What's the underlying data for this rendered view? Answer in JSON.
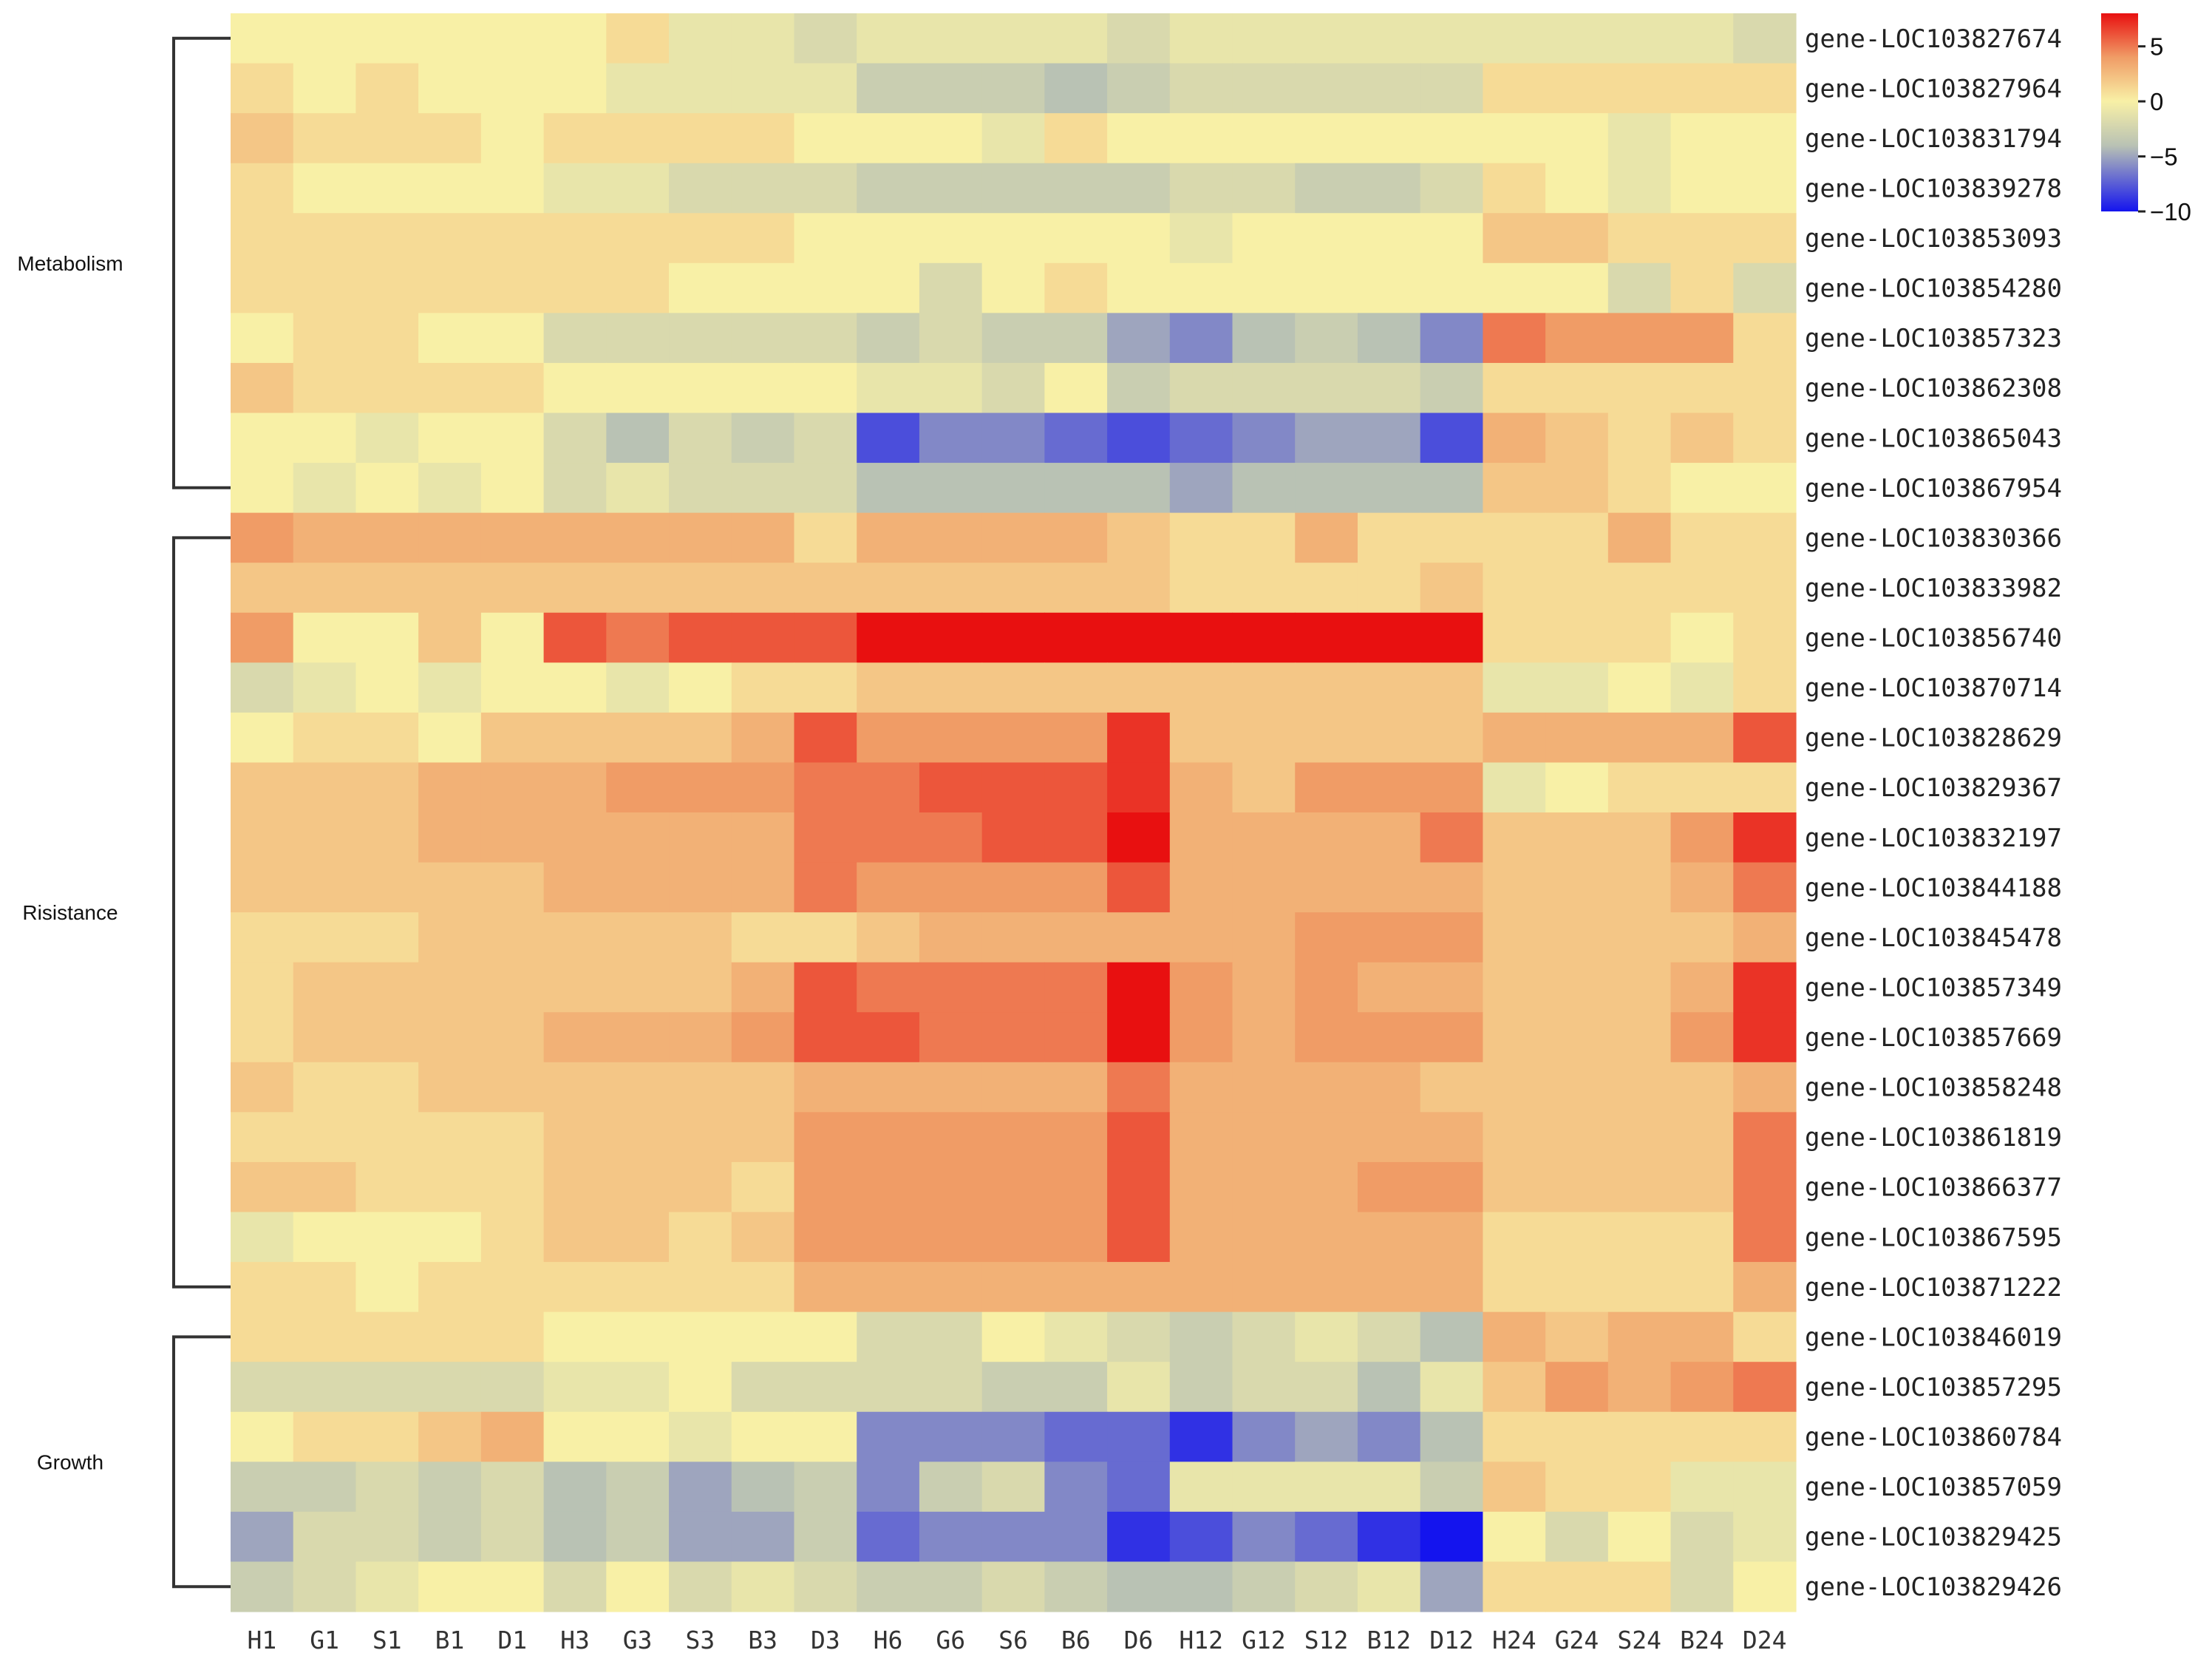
{
  "chart_data": {
    "type": "heatmap",
    "columns": [
      "H1",
      "G1",
      "S1",
      "B1",
      "D1",
      "H3",
      "G3",
      "S3",
      "B3",
      "D3",
      "H6",
      "G6",
      "S6",
      "B6",
      "D6",
      "H12",
      "G12",
      "S12",
      "B12",
      "D12",
      "H24",
      "G24",
      "S24",
      "B24",
      "D24"
    ],
    "rows": [
      "gene-LOC103827674",
      "gene-LOC103827964",
      "gene-LOC103831794",
      "gene-LOC103839278",
      "gene-LOC103853093",
      "gene-LOC103854280",
      "gene-LOC103857323",
      "gene-LOC103862308",
      "gene-LOC103865043",
      "gene-LOC103867954",
      "gene-LOC103830366",
      "gene-LOC103833982",
      "gene-LOC103856740",
      "gene-LOC103870714",
      "gene-LOC103828629",
      "gene-LOC103829367",
      "gene-LOC103832197",
      "gene-LOC103844188",
      "gene-LOC103845478",
      "gene-LOC103857349",
      "gene-LOC103857669",
      "gene-LOC103858248",
      "gene-LOC103861819",
      "gene-LOC103866377",
      "gene-LOC103867595",
      "gene-LOC103871222",
      "gene-LOC103846019",
      "gene-LOC103857295",
      "gene-LOC103860784",
      "gene-LOC103857059",
      "gene-LOC103829425",
      "gene-LOC103829426"
    ],
    "values": [
      [
        0,
        0,
        0,
        0,
        0,
        0,
        1,
        -1,
        -1,
        -2,
        -1,
        -1,
        -1,
        -1,
        -2,
        -1,
        -1,
        -1,
        -1,
        -1,
        -1,
        -1,
        -1,
        -1,
        -2
      ],
      [
        1,
        0,
        1,
        0,
        0,
        0,
        -1,
        -1,
        -1,
        -1,
        -3,
        -3,
        -3,
        -4,
        -3,
        -2,
        -2,
        -2,
        -2,
        -2,
        1,
        1,
        1,
        1,
        1
      ],
      [
        2,
        1,
        1,
        1,
        0,
        1,
        1,
        1,
        1,
        0,
        0,
        0,
        -1,
        1,
        0,
        0,
        0,
        0,
        0,
        0,
        0,
        0,
        -1,
        0,
        0
      ],
      [
        1,
        0,
        0,
        0,
        0,
        -1,
        -1,
        -2,
        -2,
        -2,
        -3,
        -3,
        -3,
        -3,
        -3,
        -2,
        -2,
        -3,
        -3,
        -2,
        1,
        0,
        -1,
        0,
        0
      ],
      [
        1,
        1,
        1,
        1,
        1,
        1,
        1,
        1,
        1,
        0,
        0,
        0,
        0,
        0,
        0,
        -1,
        0,
        0,
        0,
        0,
        2,
        2,
        1,
        1,
        1
      ],
      [
        1,
        1,
        1,
        1,
        1,
        1,
        1,
        0,
        0,
        0,
        0,
        -2,
        0,
        1,
        0,
        0,
        0,
        0,
        0,
        0,
        0,
        0,
        -2,
        1,
        -2
      ],
      [
        0,
        1,
        1,
        0,
        0,
        -2,
        -2,
        -2,
        -2,
        -2,
        -3,
        -2,
        -3,
        -3,
        -5,
        -6,
        -4,
        -3,
        -4,
        -6,
        5,
        4,
        4,
        4,
        1
      ],
      [
        2,
        1,
        1,
        1,
        1,
        0,
        0,
        0,
        0,
        0,
        -1,
        -1,
        -2,
        0,
        -3,
        -2,
        -2,
        -2,
        -2,
        -3,
        1,
        1,
        1,
        1,
        1
      ],
      [
        0,
        0,
        -1,
        0,
        0,
        -2,
        -4,
        -2,
        -3,
        -2,
        -8,
        -6,
        -6,
        -7,
        -8,
        -7,
        -6,
        -5,
        -5,
        -8,
        3,
        2,
        1,
        2,
        1
      ],
      [
        0,
        -1,
        0,
        -1,
        0,
        -2,
        -1,
        -2,
        -2,
        -2,
        -4,
        -4,
        -4,
        -4,
        -4,
        -5,
        -4,
        -4,
        -4,
        -4,
        2,
        2,
        1,
        0,
        0
      ],
      [
        4,
        3,
        3,
        3,
        3,
        3,
        3,
        3,
        3,
        1,
        3,
        3,
        3,
        3,
        2,
        1,
        1,
        3,
        1,
        1,
        1,
        1,
        3,
        1,
        1
      ],
      [
        2,
        2,
        2,
        2,
        2,
        2,
        2,
        2,
        2,
        2,
        2,
        2,
        2,
        2,
        2,
        1,
        1,
        1,
        1,
        2,
        1,
        1,
        1,
        1,
        1
      ],
      [
        4,
        0,
        0,
        2,
        0,
        6,
        5,
        6,
        6,
        6,
        9,
        9,
        9,
        9,
        10,
        8,
        8,
        8,
        8,
        9,
        1,
        1,
        1,
        0,
        1
      ],
      [
        -2,
        -1,
        0,
        -1,
        0,
        0,
        -1,
        0,
        1,
        1,
        2,
        2,
        2,
        2,
        2,
        2,
        2,
        2,
        2,
        2,
        -1,
        -1,
        0,
        -1,
        1
      ],
      [
        0,
        1,
        1,
        0,
        2,
        2,
        2,
        2,
        3,
        6,
        4,
        4,
        4,
        4,
        7,
        2,
        2,
        2,
        2,
        2,
        3,
        3,
        3,
        3,
        6
      ],
      [
        2,
        2,
        2,
        3,
        3,
        3,
        4,
        4,
        4,
        5,
        5,
        6,
        6,
        6,
        7,
        3,
        2,
        4,
        4,
        4,
        -1,
        0,
        1,
        1,
        1
      ],
      [
        2,
        2,
        2,
        3,
        3,
        3,
        3,
        3,
        3,
        5,
        5,
        5,
        6,
        6,
        9,
        3,
        3,
        3,
        3,
        5,
        2,
        2,
        2,
        4,
        7
      ],
      [
        2,
        2,
        2,
        2,
        2,
        3,
        3,
        3,
        3,
        5,
        4,
        4,
        4,
        4,
        6,
        3,
        3,
        3,
        3,
        3,
        2,
        2,
        2,
        3,
        5
      ],
      [
        1,
        1,
        1,
        2,
        2,
        2,
        2,
        2,
        1,
        1,
        2,
        3,
        3,
        3,
        3,
        3,
        3,
        4,
        4,
        4,
        2,
        2,
        2,
        2,
        3
      ],
      [
        1,
        2,
        2,
        2,
        2,
        2,
        2,
        2,
        3,
        6,
        5,
        5,
        5,
        5,
        8,
        4,
        3,
        4,
        3,
        3,
        2,
        2,
        2,
        3,
        7
      ],
      [
        1,
        2,
        2,
        2,
        2,
        3,
        3,
        3,
        4,
        6,
        6,
        5,
        5,
        5,
        9,
        4,
        3,
        4,
        4,
        4,
        2,
        2,
        2,
        4,
        7
      ],
      [
        2,
        1,
        1,
        2,
        2,
        2,
        2,
        2,
        2,
        3,
        3,
        3,
        3,
        3,
        5,
        3,
        3,
        3,
        3,
        2,
        2,
        2,
        2,
        2,
        3
      ],
      [
        1,
        1,
        1,
        1,
        1,
        2,
        2,
        2,
        2,
        4,
        4,
        4,
        4,
        4,
        6,
        3,
        3,
        3,
        3,
        3,
        2,
        2,
        2,
        2,
        5
      ],
      [
        2,
        2,
        1,
        1,
        1,
        2,
        2,
        2,
        1,
        4,
        4,
        4,
        4,
        4,
        6,
        3,
        3,
        3,
        4,
        4,
        2,
        2,
        2,
        2,
        5
      ],
      [
        -1,
        0,
        0,
        0,
        1,
        2,
        2,
        1,
        2,
        4,
        4,
        4,
        4,
        4,
        6,
        3,
        3,
        3,
        3,
        3,
        1,
        1,
        1,
        1,
        5
      ],
      [
        1,
        1,
        0,
        1,
        1,
        1,
        1,
        1,
        1,
        3,
        3,
        3,
        3,
        3,
        3,
        3,
        3,
        3,
        3,
        3,
        1,
        1,
        1,
        1,
        3
      ],
      [
        1,
        1,
        1,
        1,
        1,
        0,
        0,
        0,
        0,
        0,
        -2,
        -2,
        0,
        -1,
        -2,
        -3,
        -2,
        -1,
        -2,
        -4,
        3,
        2,
        3,
        3,
        1
      ],
      [
        -2,
        -2,
        -2,
        -2,
        -2,
        -1,
        -1,
        0,
        -2,
        -2,
        -2,
        -2,
        -3,
        -3,
        -1,
        -3,
        -2,
        -2,
        -4,
        -1,
        2,
        4,
        3,
        4,
        5
      ],
      [
        0,
        1,
        1,
        2,
        3,
        0,
        0,
        -1,
        0,
        0,
        -6,
        -6,
        -6,
        -7,
        -7,
        -9,
        -6,
        -5,
        -6,
        -4,
        1,
        1,
        1,
        1,
        1
      ],
      [
        -3,
        -3,
        -2,
        -3,
        -2,
        -4,
        -3,
        -5,
        -4,
        -3,
        -6,
        -3,
        -2,
        -6,
        -7,
        -1,
        -1,
        -1,
        -1,
        -3,
        2,
        1,
        1,
        -1,
        -1
      ],
      [
        -5,
        -2,
        -2,
        -3,
        -2,
        -4,
        -3,
        -5,
        -5,
        -3,
        -7,
        -6,
        -6,
        -6,
        -9,
        -8,
        -6,
        -7,
        -9,
        -10,
        0,
        -2,
        0,
        -2,
        -1
      ],
      [
        -3,
        -2,
        -1,
        0,
        0,
        -2,
        0,
        -2,
        -1,
        -2,
        -3,
        -3,
        -2,
        -3,
        -4,
        -4,
        -3,
        -2,
        -1,
        -5,
        1,
        1,
        1,
        -2,
        0
      ]
    ],
    "row_groups": [
      {
        "label": "Metabolism",
        "start": 0,
        "end": 9
      },
      {
        "label": "Risistance",
        "start": 10,
        "end": 25
      },
      {
        "label": "Growth",
        "start": 26,
        "end": 31
      }
    ],
    "colorbar": {
      "ticks": [
        5,
        0,
        -5,
        -10
      ],
      "tick_labels": [
        "5",
        "0",
        "−5",
        "−10"
      ],
      "min": -10,
      "max": 8,
      "colors": {
        "low": "#1414ee",
        "mid_low": "#b9c2b4",
        "mid": "#f8f0a6",
        "mid_high": "#f09c66",
        "high": "#e81010"
      }
    }
  }
}
